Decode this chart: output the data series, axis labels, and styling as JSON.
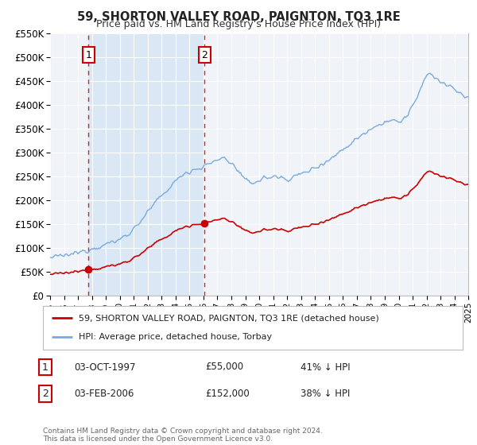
{
  "title": "59, SHORTON VALLEY ROAD, PAIGNTON, TQ3 1RE",
  "subtitle": "Price paid vs. HM Land Registry's House Price Index (HPI)",
  "legend_line1": "59, SHORTON VALLEY ROAD, PAIGNTON, TQ3 1RE (detached house)",
  "legend_line2": "HPI: Average price, detached house, Torbay",
  "sale1_date": "03-OCT-1997",
  "sale1_price": 55000,
  "sale1_label": "41% ↓ HPI",
  "sale1_x": 1997.75,
  "sale1_num": "1",
  "sale2_date": "03-FEB-2006",
  "sale2_price": 152000,
  "sale2_label": "38% ↓ HPI",
  "sale2_x": 2006.08,
  "sale2_num": "2",
  "footer": "Contains HM Land Registry data © Crown copyright and database right 2024.\nThis data is licensed under the Open Government Licence v3.0.",
  "ylim": [
    0,
    550000
  ],
  "xlim": [
    1995,
    2025
  ],
  "yticks": [
    0,
    50000,
    100000,
    150000,
    200000,
    250000,
    300000,
    350000,
    400000,
    450000,
    500000,
    550000
  ],
  "ytick_labels": [
    "£0",
    "£50K",
    "£100K",
    "£150K",
    "£200K",
    "£250K",
    "£300K",
    "£350K",
    "£400K",
    "£450K",
    "£500K",
    "£550K"
  ],
  "xticks": [
    1995,
    1996,
    1997,
    1998,
    1999,
    2000,
    2001,
    2002,
    2003,
    2004,
    2005,
    2006,
    2007,
    2008,
    2009,
    2010,
    2011,
    2012,
    2013,
    2014,
    2015,
    2016,
    2017,
    2018,
    2019,
    2020,
    2021,
    2022,
    2023,
    2024,
    2025
  ],
  "red_color": "#cc0000",
  "blue_color": "#7aaadd",
  "shade_color": "#dae8f5",
  "plot_bg_color": "#f0f4f8",
  "grid_color": "#ffffff",
  "spine_color": "#bbbbbb"
}
